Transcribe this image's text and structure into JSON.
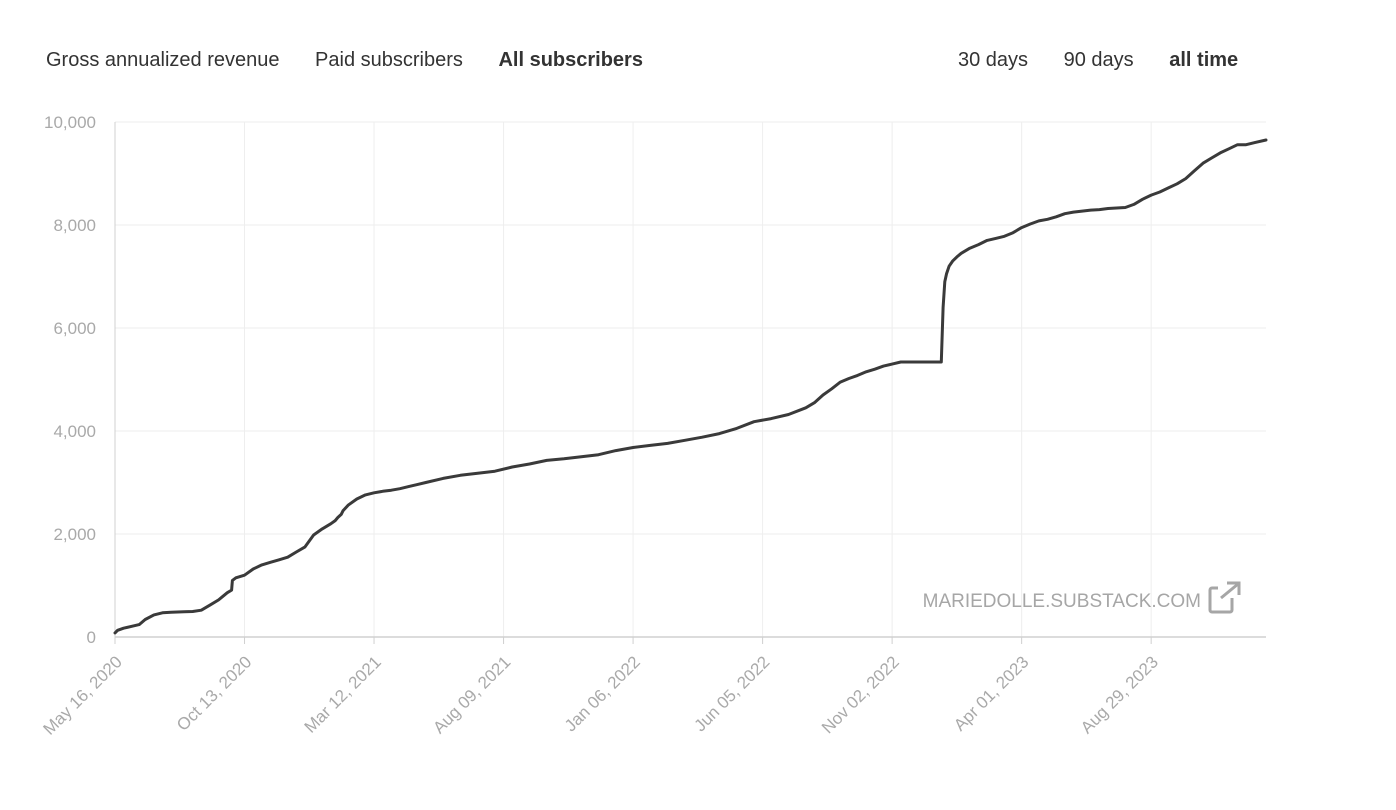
{
  "metric_tabs": [
    {
      "label": "Gross annualized revenue",
      "active": false
    },
    {
      "label": "Paid subscribers",
      "active": false
    },
    {
      "label": "All subscribers",
      "active": true
    }
  ],
  "range_tabs": [
    {
      "label": "30 days",
      "active": false
    },
    {
      "label": "90 days",
      "active": false
    },
    {
      "label": "all time",
      "active": true
    }
  ],
  "watermark": "MARIEDOLLE.SUBSTACK.COM",
  "colors": {
    "line": "#3a3a3a",
    "grid": "#eeeeee",
    "axis": "#d0d0d0",
    "text": "#a9a9a9"
  },
  "chart_data": {
    "type": "line",
    "title": "All subscribers",
    "ylim": [
      0,
      10000
    ],
    "yticks": [
      0,
      2000,
      4000,
      6000,
      8000,
      10000
    ],
    "ytick_labels": [
      "0",
      "2,000",
      "4,000",
      "6,000",
      "8,000",
      "10,000"
    ],
    "xlim_days": [
      0,
      1333
    ],
    "xticks_days": [
      0,
      150,
      300,
      450,
      600,
      750,
      900,
      1050,
      1200
    ],
    "xtick_labels": [
      "May 16, 2020",
      "Oct 13, 2020",
      "Mar 12, 2021",
      "Aug 09, 2021",
      "Jan 06, 2022",
      "Jun 05, 2022",
      "Nov 02, 2022",
      "Apr 01, 2023",
      "Aug 29, 2023"
    ],
    "grid": true,
    "series": [
      {
        "name": "All subscribers",
        "x_days": [
          0,
          3,
          10,
          20,
          28,
          35,
          45,
          55,
          65,
          80,
          90,
          100,
          110,
          120,
          125,
          130,
          135,
          136,
          140,
          150,
          160,
          170,
          180,
          190,
          200,
          210,
          220,
          230,
          240,
          250,
          255,
          258,
          262,
          264,
          270,
          280,
          290,
          300,
          310,
          320,
          330,
          340,
          350,
          360,
          380,
          400,
          420,
          440,
          460,
          480,
          500,
          520,
          540,
          560,
          580,
          600,
          620,
          630,
          640,
          660,
          680,
          700,
          720,
          740,
          760,
          780,
          800,
          810,
          820,
          830,
          840,
          850,
          860,
          870,
          880,
          890,
          900,
          910,
          920,
          930,
          940,
          945,
          950,
          955,
          957,
          959,
          961,
          963,
          966,
          970,
          975,
          980,
          990,
          1000,
          1010,
          1020,
          1030,
          1040,
          1050,
          1060,
          1070,
          1080,
          1090,
          1100,
          1110,
          1120,
          1130,
          1140,
          1150,
          1160,
          1170,
          1180,
          1190,
          1200,
          1210,
          1220,
          1230,
          1240,
          1250,
          1260,
          1270,
          1280,
          1290,
          1300,
          1310,
          1320,
          1333
        ],
        "values": [
          80,
          130,
          170,
          210,
          240,
          340,
          430,
          470,
          480,
          490,
          495,
          520,
          620,
          720,
          790,
          860,
          910,
          1100,
          1150,
          1200,
          1320,
          1400,
          1450,
          1500,
          1550,
          1650,
          1750,
          1980,
          2100,
          2200,
          2260,
          2320,
          2380,
          2450,
          2560,
          2680,
          2760,
          2800,
          2830,
          2850,
          2880,
          2920,
          2960,
          3000,
          3080,
          3140,
          3180,
          3220,
          3300,
          3360,
          3430,
          3460,
          3500,
          3540,
          3620,
          3680,
          3720,
          3740,
          3760,
          3820,
          3880,
          3950,
          4050,
          4180,
          4240,
          4320,
          4450,
          4550,
          4700,
          4820,
          4950,
          5020,
          5080,
          5150,
          5200,
          5260,
          5300,
          5340,
          5340,
          5340,
          5340,
          5340,
          5340,
          5340,
          5340,
          6400,
          6900,
          7050,
          7200,
          7300,
          7380,
          7450,
          7550,
          7620,
          7700,
          7740,
          7780,
          7850,
          7950,
          8020,
          8080,
          8110,
          8160,
          8220,
          8250,
          8270,
          8290,
          8300,
          8320,
          8330,
          8340,
          8400,
          8500,
          8580,
          8640,
          8720,
          8800,
          8900,
          9050,
          9200,
          9300,
          9400,
          9480,
          9560,
          9560,
          9600,
          9650
        ]
      }
    ]
  }
}
